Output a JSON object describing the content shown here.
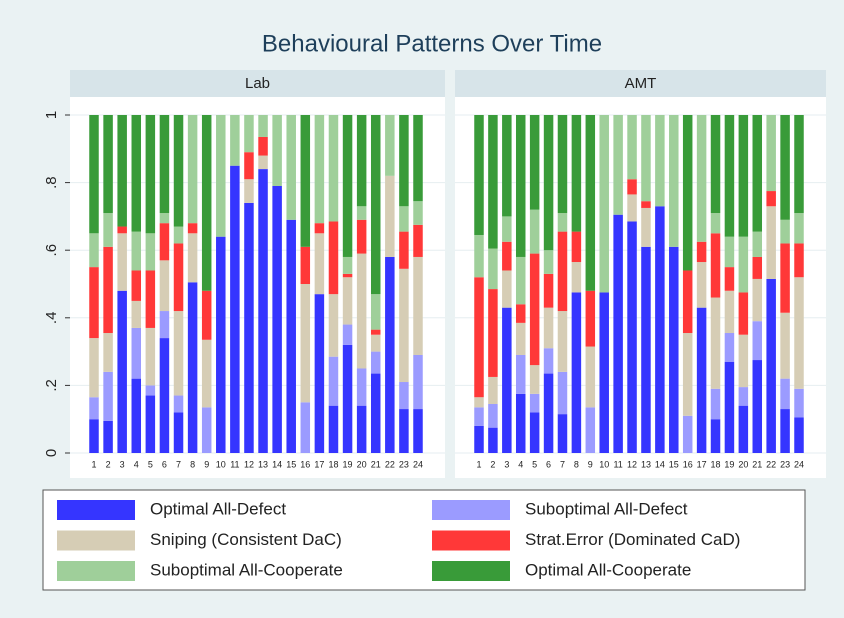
{
  "title": "Behavioural Patterns Over Time",
  "chart_data": [
    {
      "type": "stacked_bar",
      "title": "Lab",
      "categories": [
        1,
        2,
        3,
        4,
        5,
        6,
        7,
        8,
        9,
        10,
        11,
        12,
        13,
        14,
        15,
        16,
        17,
        18,
        19,
        20,
        21,
        22,
        23,
        24
      ],
      "ylim": [
        0,
        1
      ],
      "yticks": [
        0,
        {
          "value": 0.2,
          "label": ".2"
        },
        {
          "value": 0.4,
          "label": ".4"
        },
        {
          "value": 0.6,
          "label": ".6"
        },
        {
          "value": 0.8,
          "label": ".8"
        },
        1
      ],
      "grid": true,
      "series": [
        {
          "name": "Optimal All-Defect",
          "color": "#3535ff",
          "values": [
            0.1,
            0.095,
            0.48,
            0.22,
            0.17,
            0.34,
            0.12,
            0.505,
            0,
            0.64,
            0.85,
            0.74,
            0.84,
            0.79,
            0.69,
            0,
            0.47,
            0.14,
            0.32,
            0.14,
            0.235,
            0.58,
            0.13,
            0.13
          ]
        },
        {
          "name": "Suboptimal All-Defect",
          "color": "#9b9bff",
          "values": [
            0.065,
            0.145,
            0,
            0.15,
            0.03,
            0.08,
            0.05,
            0,
            0.135,
            0,
            0,
            0,
            0,
            0,
            0,
            0.15,
            0,
            0.145,
            0.06,
            0.11,
            0.065,
            0,
            0.08,
            0.16
          ]
        },
        {
          "name": "Sniping (Consistent DaC)",
          "color": "#d6cdb5",
          "values": [
            0.175,
            0.115,
            0.17,
            0.08,
            0.17,
            0.15,
            0.25,
            0.145,
            0.2,
            0,
            0,
            0.07,
            0.04,
            0,
            0,
            0.35,
            0.18,
            0.185,
            0.14,
            0.34,
            0.05,
            0.24,
            0.335,
            0.29
          ]
        },
        {
          "name": "Strat.Error (Dominated CaD)",
          "color": "#ff3838",
          "values": [
            0.21,
            0.255,
            0.02,
            0.09,
            0.17,
            0.11,
            0.2,
            0.03,
            0.145,
            0,
            0,
            0.08,
            0.055,
            0,
            0,
            0.11,
            0.03,
            0.215,
            0.01,
            0.1,
            0.015,
            0,
            0.11,
            0.095
          ]
        },
        {
          "name": "Suboptimal All-Cooperate",
          "color": "#9fcf9a",
          "values": [
            0.1,
            0.1,
            0,
            0.115,
            0.11,
            0.03,
            0.05,
            0.32,
            0,
            0.36,
            0.15,
            0.11,
            0.065,
            0.21,
            0.31,
            0,
            0.32,
            0.315,
            0.05,
            0.04,
            0.105,
            0.18,
            0.075,
            0.07
          ]
        },
        {
          "name": "Optimal All-Cooperate",
          "color": "#399b39",
          "values": [
            0.35,
            0.29,
            0.33,
            0.345,
            0.35,
            0.29,
            0.33,
            0,
            0.52,
            0,
            0,
            0,
            0,
            0,
            0,
            0.39,
            0,
            0,
            0.42,
            0.27,
            0.53,
            0,
            0.27,
            0.255
          ]
        }
      ]
    },
    {
      "type": "stacked_bar",
      "title": "AMT",
      "categories": [
        1,
        2,
        3,
        4,
        5,
        6,
        7,
        8,
        9,
        10,
        11,
        12,
        13,
        14,
        15,
        16,
        17,
        18,
        19,
        20,
        21,
        22,
        23,
        24
      ],
      "ylim": [
        0,
        1
      ],
      "yticks": [
        0,
        {
          "value": 0.2,
          "label": ".2"
        },
        {
          "value": 0.4,
          "label": ".4"
        },
        {
          "value": 0.6,
          "label": ".6"
        },
        {
          "value": 0.8,
          "label": ".8"
        },
        1
      ],
      "grid": true,
      "series": [
        {
          "name": "Optimal All-Defect",
          "color": "#3535ff",
          "values": [
            0.08,
            0.075,
            0.43,
            0.175,
            0.12,
            0.235,
            0.115,
            0.475,
            0,
            0.475,
            0.705,
            0.685,
            0.61,
            0.73,
            0.61,
            0,
            0.43,
            0.1,
            0.27,
            0.14,
            0.275,
            0.515,
            0.13,
            0.105
          ]
        },
        {
          "name": "Suboptimal All-Defect",
          "color": "#9b9bff",
          "values": [
            0.055,
            0.07,
            0,
            0.115,
            0.055,
            0.075,
            0.125,
            0,
            0.135,
            0,
            0,
            0,
            0,
            0,
            0,
            0.11,
            0,
            0.09,
            0.085,
            0.055,
            0.115,
            0,
            0.09,
            0.085
          ]
        },
        {
          "name": "Sniping (Consistent DaC)",
          "color": "#d6cdb5",
          "values": [
            0.03,
            0.08,
            0.11,
            0.095,
            0.085,
            0.12,
            0.18,
            0.09,
            0.18,
            0,
            0,
            0.08,
            0.115,
            0,
            0,
            0.245,
            0.135,
            0.27,
            0.125,
            0.155,
            0.125,
            0.215,
            0.195,
            0.33
          ]
        },
        {
          "name": "Strat.Error (Dominated CaD)",
          "color": "#ff3838",
          "values": [
            0.355,
            0.26,
            0.085,
            0.055,
            0.33,
            0.1,
            0.235,
            0.09,
            0.165,
            0,
            0,
            0.045,
            0.02,
            0,
            0,
            0.185,
            0.06,
            0.19,
            0.07,
            0.125,
            0.065,
            0.045,
            0.205,
            0.1
          ]
        },
        {
          "name": "Suboptimal All-Cooperate",
          "color": "#9fcf9a",
          "values": [
            0.125,
            0.12,
            0.075,
            0.14,
            0.13,
            0.07,
            0.055,
            0,
            0,
            0.525,
            0.295,
            0.19,
            0.255,
            0.27,
            0.39,
            0,
            0.375,
            0.06,
            0.09,
            0.165,
            0.075,
            0.225,
            0.07,
            0.09
          ]
        },
        {
          "name": "Optimal All-Cooperate",
          "color": "#399b39",
          "values": [
            0.355,
            0.395,
            0.3,
            0.42,
            0.28,
            0.4,
            0.29,
            0.345,
            0.52,
            0,
            0,
            0,
            0,
            0,
            0,
            0.46,
            0,
            0.29,
            0.36,
            0.36,
            0.345,
            0,
            0.31,
            0.29
          ]
        }
      ]
    }
  ]
}
